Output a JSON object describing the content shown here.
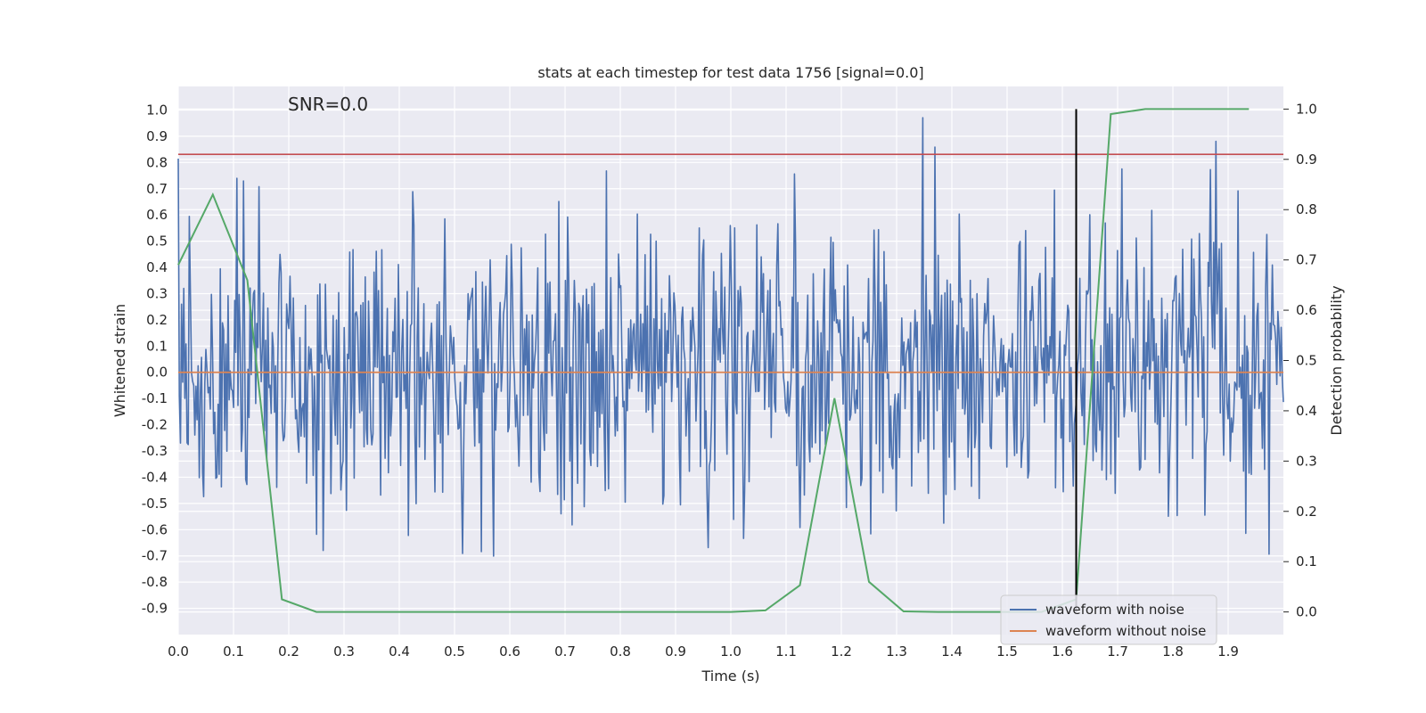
{
  "chart_data": {
    "type": "line",
    "title": "stats at each timestep for test data 1756 [signal=0.0]",
    "annotation": "SNR=0.0",
    "xlabel": "Time (s)",
    "ylabel": "Whitened strain",
    "y2label": "Detection probability",
    "xlim": [
      0.0,
      2.0
    ],
    "ylim": [
      -1.0,
      1.09
    ],
    "y2lim": [
      -0.045,
      1.045
    ],
    "xticks": [
      "0.0",
      "0.1",
      "0.2",
      "0.3",
      "0.4",
      "0.5",
      "0.6",
      "0.7",
      "0.8",
      "0.9",
      "1.0",
      "1.1",
      "1.2",
      "1.3",
      "1.4",
      "1.5",
      "1.6",
      "1.7",
      "1.8",
      "1.9"
    ],
    "yticks": [
      "1.0",
      "0.9",
      "0.8",
      "0.7",
      "0.6",
      "0.5",
      "0.4",
      "0.3",
      "0.2",
      "0.1",
      "0.0",
      "-0.1",
      "-0.2",
      "-0.3",
      "-0.4",
      "-0.5",
      "-0.6",
      "-0.7",
      "-0.8",
      "-0.9"
    ],
    "y2ticks": [
      "1.0",
      "0.9",
      "0.8",
      "0.7",
      "0.6",
      "0.5",
      "0.4",
      "0.3",
      "0.2",
      "0.1",
      "0.0"
    ],
    "grid": true,
    "legend_position": "bottom-right",
    "series": [
      {
        "name": "waveform with noise",
        "color": "#4c72b0",
        "description": "random noise, roughly uniform in [-0.5, 0.5] with occasional spikes to about ±0.9",
        "amplitude_range": [
          -0.86,
          1.0
        ],
        "n_samples": 1000
      },
      {
        "name": "waveform without noise",
        "color": "#dd8452",
        "x": [
          0.0,
          2.0
        ],
        "y": [
          0.0,
          0.0
        ]
      },
      {
        "name": "detection probability",
        "axis": "right",
        "color": "#55a868",
        "x": [
          0.0,
          0.0625,
          0.125,
          0.1875,
          0.25,
          0.3125,
          0.375,
          0.4375,
          0.5,
          0.5625,
          0.625,
          0.6875,
          0.75,
          0.8125,
          0.875,
          0.9375,
          1.0,
          1.0625,
          1.125,
          1.1875,
          1.25,
          1.3125,
          1.375,
          1.4375,
          1.5,
          1.5625,
          1.625,
          1.6875,
          1.75,
          1.8125,
          1.875,
          1.9375
        ],
        "y": [
          0.69,
          0.83,
          0.66,
          0.025,
          0.0,
          0.0,
          0.0,
          0.0,
          0.0,
          0.0,
          0.0,
          0.0,
          0.0,
          0.0,
          0.0,
          0.0,
          0.0,
          0.003,
          0.053,
          0.425,
          0.06,
          0.001,
          0.0,
          0.0,
          0.0,
          0.0,
          0.025,
          0.99,
          1.0,
          1.0,
          1.0,
          1.0
        ]
      }
    ],
    "threshold_line": {
      "value": 0.91,
      "axis": "right",
      "color": "#c44e52"
    },
    "marker_line": {
      "x": 1.625,
      "y_from": 0.0,
      "y_to": 1.0,
      "color": "#000000"
    },
    "legend": [
      {
        "label": "waveform with noise",
        "color": "#4c72b0"
      },
      {
        "label": "waveform without noise",
        "color": "#dd8452"
      }
    ],
    "colors": {
      "plot_bg": "#eaeaf2",
      "grid": "#ffffff",
      "text": "#262626"
    }
  }
}
